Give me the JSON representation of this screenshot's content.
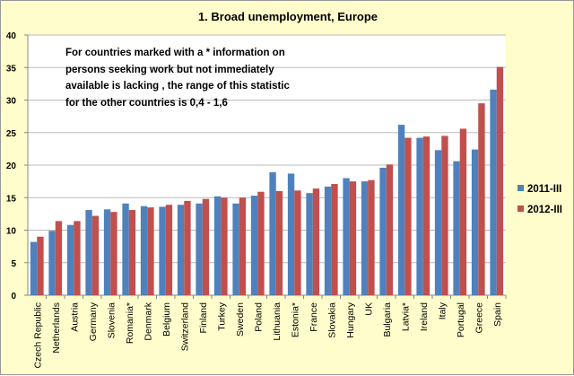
{
  "chart_data": {
    "type": "bar",
    "title": "1. Broad unemployment, Europe",
    "annotation": "For countries marked with a * information on persons seeking work but not immediately available is lacking , the range of this statistic for the other countries is 0,4 - 1,6",
    "categories": [
      "Czech Republic",
      "Netherlands",
      "Austria",
      "Germany",
      "Slovenia",
      "Romania*",
      "Denmark",
      "Belgium",
      "Switzerland",
      "Finland",
      "Turkey",
      "Sweden",
      "Poland",
      "Lithuania",
      "Estonia*",
      "France",
      "Slovakia",
      "Hungary",
      "UK",
      "Bulgaria",
      "Latvia*",
      "Ireland",
      "Italy",
      "Portugal",
      "Greece",
      "Spain"
    ],
    "series": [
      {
        "name": "2011-III",
        "color": "#4f81bd",
        "values": [
          8.2,
          9.9,
          10.8,
          13.1,
          13.2,
          14.1,
          13.7,
          13.6,
          13.9,
          14.1,
          15.2,
          14.1,
          15.3,
          18.9,
          18.7,
          15.7,
          16.7,
          18.0,
          17.5,
          19.6,
          26.2,
          24.2,
          22.3,
          20.6,
          22.4,
          31.6
        ]
      },
      {
        "name": "2012-III",
        "color": "#c0504d",
        "values": [
          9.0,
          11.4,
          11.4,
          12.2,
          12.8,
          13.1,
          13.5,
          13.9,
          14.5,
          14.8,
          15.0,
          15.0,
          15.9,
          16.0,
          16.1,
          16.4,
          17.1,
          17.5,
          17.7,
          20.1,
          24.2,
          24.4,
          24.5,
          25.6,
          29.5,
          35.1
        ]
      }
    ],
    "ylim": [
      0,
      40
    ],
    "yticks": [
      "0",
      "5",
      "10",
      "15",
      "20",
      "25",
      "30",
      "35",
      "40"
    ],
    "grid": true,
    "legend": "right"
  }
}
